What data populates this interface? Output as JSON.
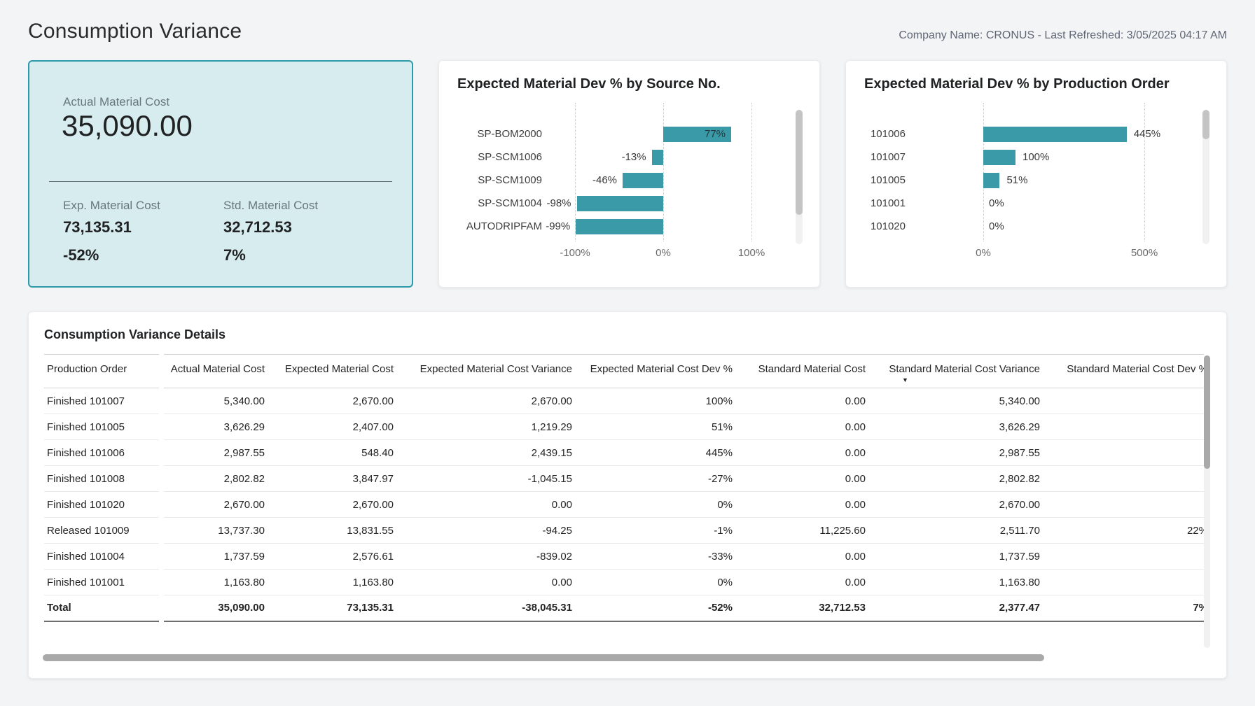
{
  "header": {
    "title": "Consumption Variance",
    "meta": "Company Name: CRONUS - Last Refreshed: 3/05/2025 04:17 AM"
  },
  "colors": {
    "accent_teal": "#3a9aa8",
    "kpi_background": "#d7ecef",
    "kpi_border": "#2d9aaa"
  },
  "kpi_card": {
    "primary_label": "Actual Material Cost",
    "primary_value": "35,090.00",
    "secondary": [
      {
        "label": "Exp. Material Cost",
        "value": "73,135.31",
        "percent": "-52%"
      },
      {
        "label": "Std. Material Cost",
        "value": "32,712.53",
        "percent": "7%"
      }
    ]
  },
  "chart_data": [
    {
      "type": "bar",
      "orientation": "horizontal",
      "title": "Expected Material Dev % by Source No.",
      "categories": [
        "SP-BOM2000",
        "SP-SCM1006",
        "SP-SCM1009",
        "SP-SCM1004",
        "AUTODRIPFAM"
      ],
      "values": [
        77,
        -13,
        -46,
        -98,
        -99
      ],
      "value_labels": [
        "77%",
        "-13%",
        "-46%",
        "-98%",
        "-99%"
      ],
      "xlim": [
        -100,
        100
      ],
      "ticks": [
        {
          "value": -100,
          "label": "-100%"
        },
        {
          "value": 0,
          "label": "0%"
        },
        {
          "value": 100,
          "label": "100%"
        }
      ],
      "grid": true,
      "legend": "none",
      "bar_color": "#3a9aa8",
      "scrollbar": {
        "visible": true,
        "thumb_fraction": 0.78
      }
    },
    {
      "type": "bar",
      "orientation": "horizontal",
      "title": "Expected Material Dev % by Production Order",
      "categories": [
        "101006",
        "101007",
        "101005",
        "101001",
        "101020"
      ],
      "values": [
        445,
        100,
        51,
        0,
        0
      ],
      "value_labels": [
        "445%",
        "100%",
        "51%",
        "0%",
        "0%"
      ],
      "xlim": [
        0,
        500
      ],
      "ticks": [
        {
          "value": 0,
          "label": "0%"
        },
        {
          "value": 500,
          "label": "500%"
        }
      ],
      "grid": true,
      "legend": "none",
      "bar_color": "#3a9aa8",
      "scrollbar": {
        "visible": true,
        "thumb_fraction": 0.22
      }
    }
  ],
  "table": {
    "title": "Consumption Variance Details",
    "columns": [
      "Production Order",
      "Actual Material Cost",
      "Expected Material Cost",
      "Expected Material Cost Variance",
      "Expected Material Cost Dev %",
      "Standard Material Cost",
      "Standard Material Cost Variance",
      "Standard Material Cost Dev %"
    ],
    "sort_column": "Standard Material Cost Variance",
    "sort_direction": "descending",
    "sort_indicator": "▼",
    "rows": [
      [
        "Finished 101007",
        "5,340.00",
        "2,670.00",
        "2,670.00",
        "100%",
        "0.00",
        "5,340.00",
        ""
      ],
      [
        "Finished 101005",
        "3,626.29",
        "2,407.00",
        "1,219.29",
        "51%",
        "0.00",
        "3,626.29",
        ""
      ],
      [
        "Finished 101006",
        "2,987.55",
        "548.40",
        "2,439.15",
        "445%",
        "0.00",
        "2,987.55",
        ""
      ],
      [
        "Finished 101008",
        "2,802.82",
        "3,847.97",
        "-1,045.15",
        "-27%",
        "0.00",
        "2,802.82",
        ""
      ],
      [
        "Finished 101020",
        "2,670.00",
        "2,670.00",
        "0.00",
        "0%",
        "0.00",
        "2,670.00",
        ""
      ],
      [
        "Released 101009",
        "13,737.30",
        "13,831.55",
        "-94.25",
        "-1%",
        "11,225.60",
        "2,511.70",
        "22%"
      ],
      [
        "Finished 101004",
        "1,737.59",
        "2,576.61",
        "-839.02",
        "-33%",
        "0.00",
        "1,737.59",
        ""
      ],
      [
        "Finished 101001",
        "1,163.80",
        "1,163.80",
        "0.00",
        "0%",
        "0.00",
        "1,163.80",
        ""
      ]
    ],
    "total_row": [
      "Total",
      "35,090.00",
      "73,135.31",
      "-38,045.31",
      "-52%",
      "32,712.53",
      "2,377.47",
      "7%"
    ]
  }
}
